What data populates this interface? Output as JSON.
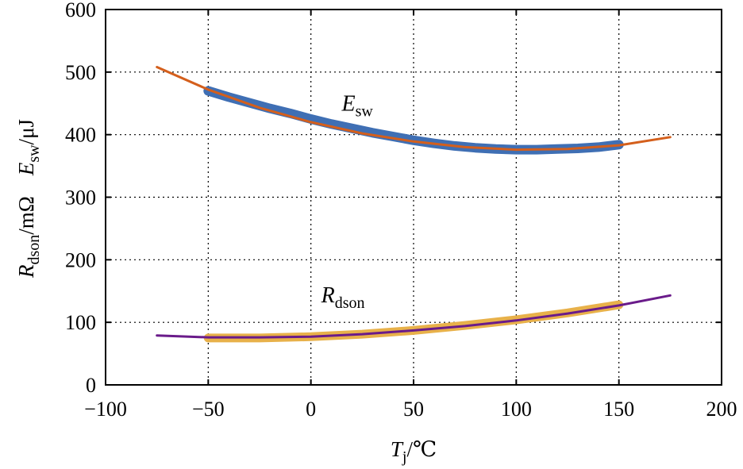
{
  "chart_data": {
    "type": "line",
    "title": "",
    "x_axis": {
      "label_main": "T",
      "label_sub": "j",
      "label_unit": "/℃",
      "range": [
        -100,
        200
      ],
      "ticks": [
        -100,
        -50,
        0,
        50,
        100,
        150,
        200
      ],
      "tick_labels": [
        "−100",
        "−50",
        "0",
        "50",
        "100",
        "150",
        "200"
      ]
    },
    "y_axis": {
      "label_rds_main": "R",
      "label_rds_sub": "dson",
      "label_rds_unit": "/mΩ",
      "label_esw_main": "E",
      "label_esw_sub": "sw",
      "label_esw_unit": "/μJ",
      "range": [
        0,
        600
      ],
      "ticks": [
        0,
        100,
        200,
        300,
        400,
        500,
        600
      ],
      "tick_labels": [
        "0",
        "100",
        "200",
        "300",
        "400",
        "500",
        "600"
      ]
    },
    "grid": true,
    "grid_style": "dotted",
    "annotations": [
      {
        "main": "E",
        "sub": "sw",
        "x": 15,
        "y": 438
      },
      {
        "main": "R",
        "sub": "dson",
        "x": 5,
        "y": 132
      }
    ],
    "series": [
      {
        "kind": "measured",
        "color": "#3f6fb4",
        "band_width": 12,
        "x": [
          -50,
          -40,
          -30,
          -20,
          -10,
          0,
          10,
          20,
          30,
          40,
          50,
          60,
          70,
          80,
          90,
          100,
          110,
          120,
          130,
          140,
          150
        ],
        "y": [
          470,
          460,
          451,
          442,
          434,
          425,
          417,
          410,
          403,
          397,
          391,
          386,
          382,
          379,
          377,
          376,
          376,
          377,
          378,
          380,
          384
        ]
      },
      {
        "kind": "fit",
        "color": "#d45f1c",
        "x": [
          -75,
          -50,
          -25,
          0,
          25,
          50,
          75,
          100,
          125,
          150,
          175
        ],
        "y": [
          508,
          472,
          443,
          420,
          402,
          389,
          380,
          376,
          377,
          383,
          396
        ]
      },
      {
        "kind": "measured",
        "color": "#e8b14a",
        "band_width": 11,
        "x": [
          -50,
          -25,
          0,
          25,
          50,
          75,
          100,
          125,
          150
        ],
        "y": [
          75,
          75,
          77,
          81,
          87,
          95,
          104,
          115,
          128
        ]
      },
      {
        "kind": "fit",
        "color": "#6a1b8a",
        "x": [
          -75,
          -50,
          -25,
          0,
          25,
          50,
          75,
          100,
          125,
          150,
          175
        ],
        "y": [
          79,
          76,
          76,
          77,
          81,
          87,
          94,
          103,
          114,
          127,
          143
        ]
      }
    ]
  }
}
